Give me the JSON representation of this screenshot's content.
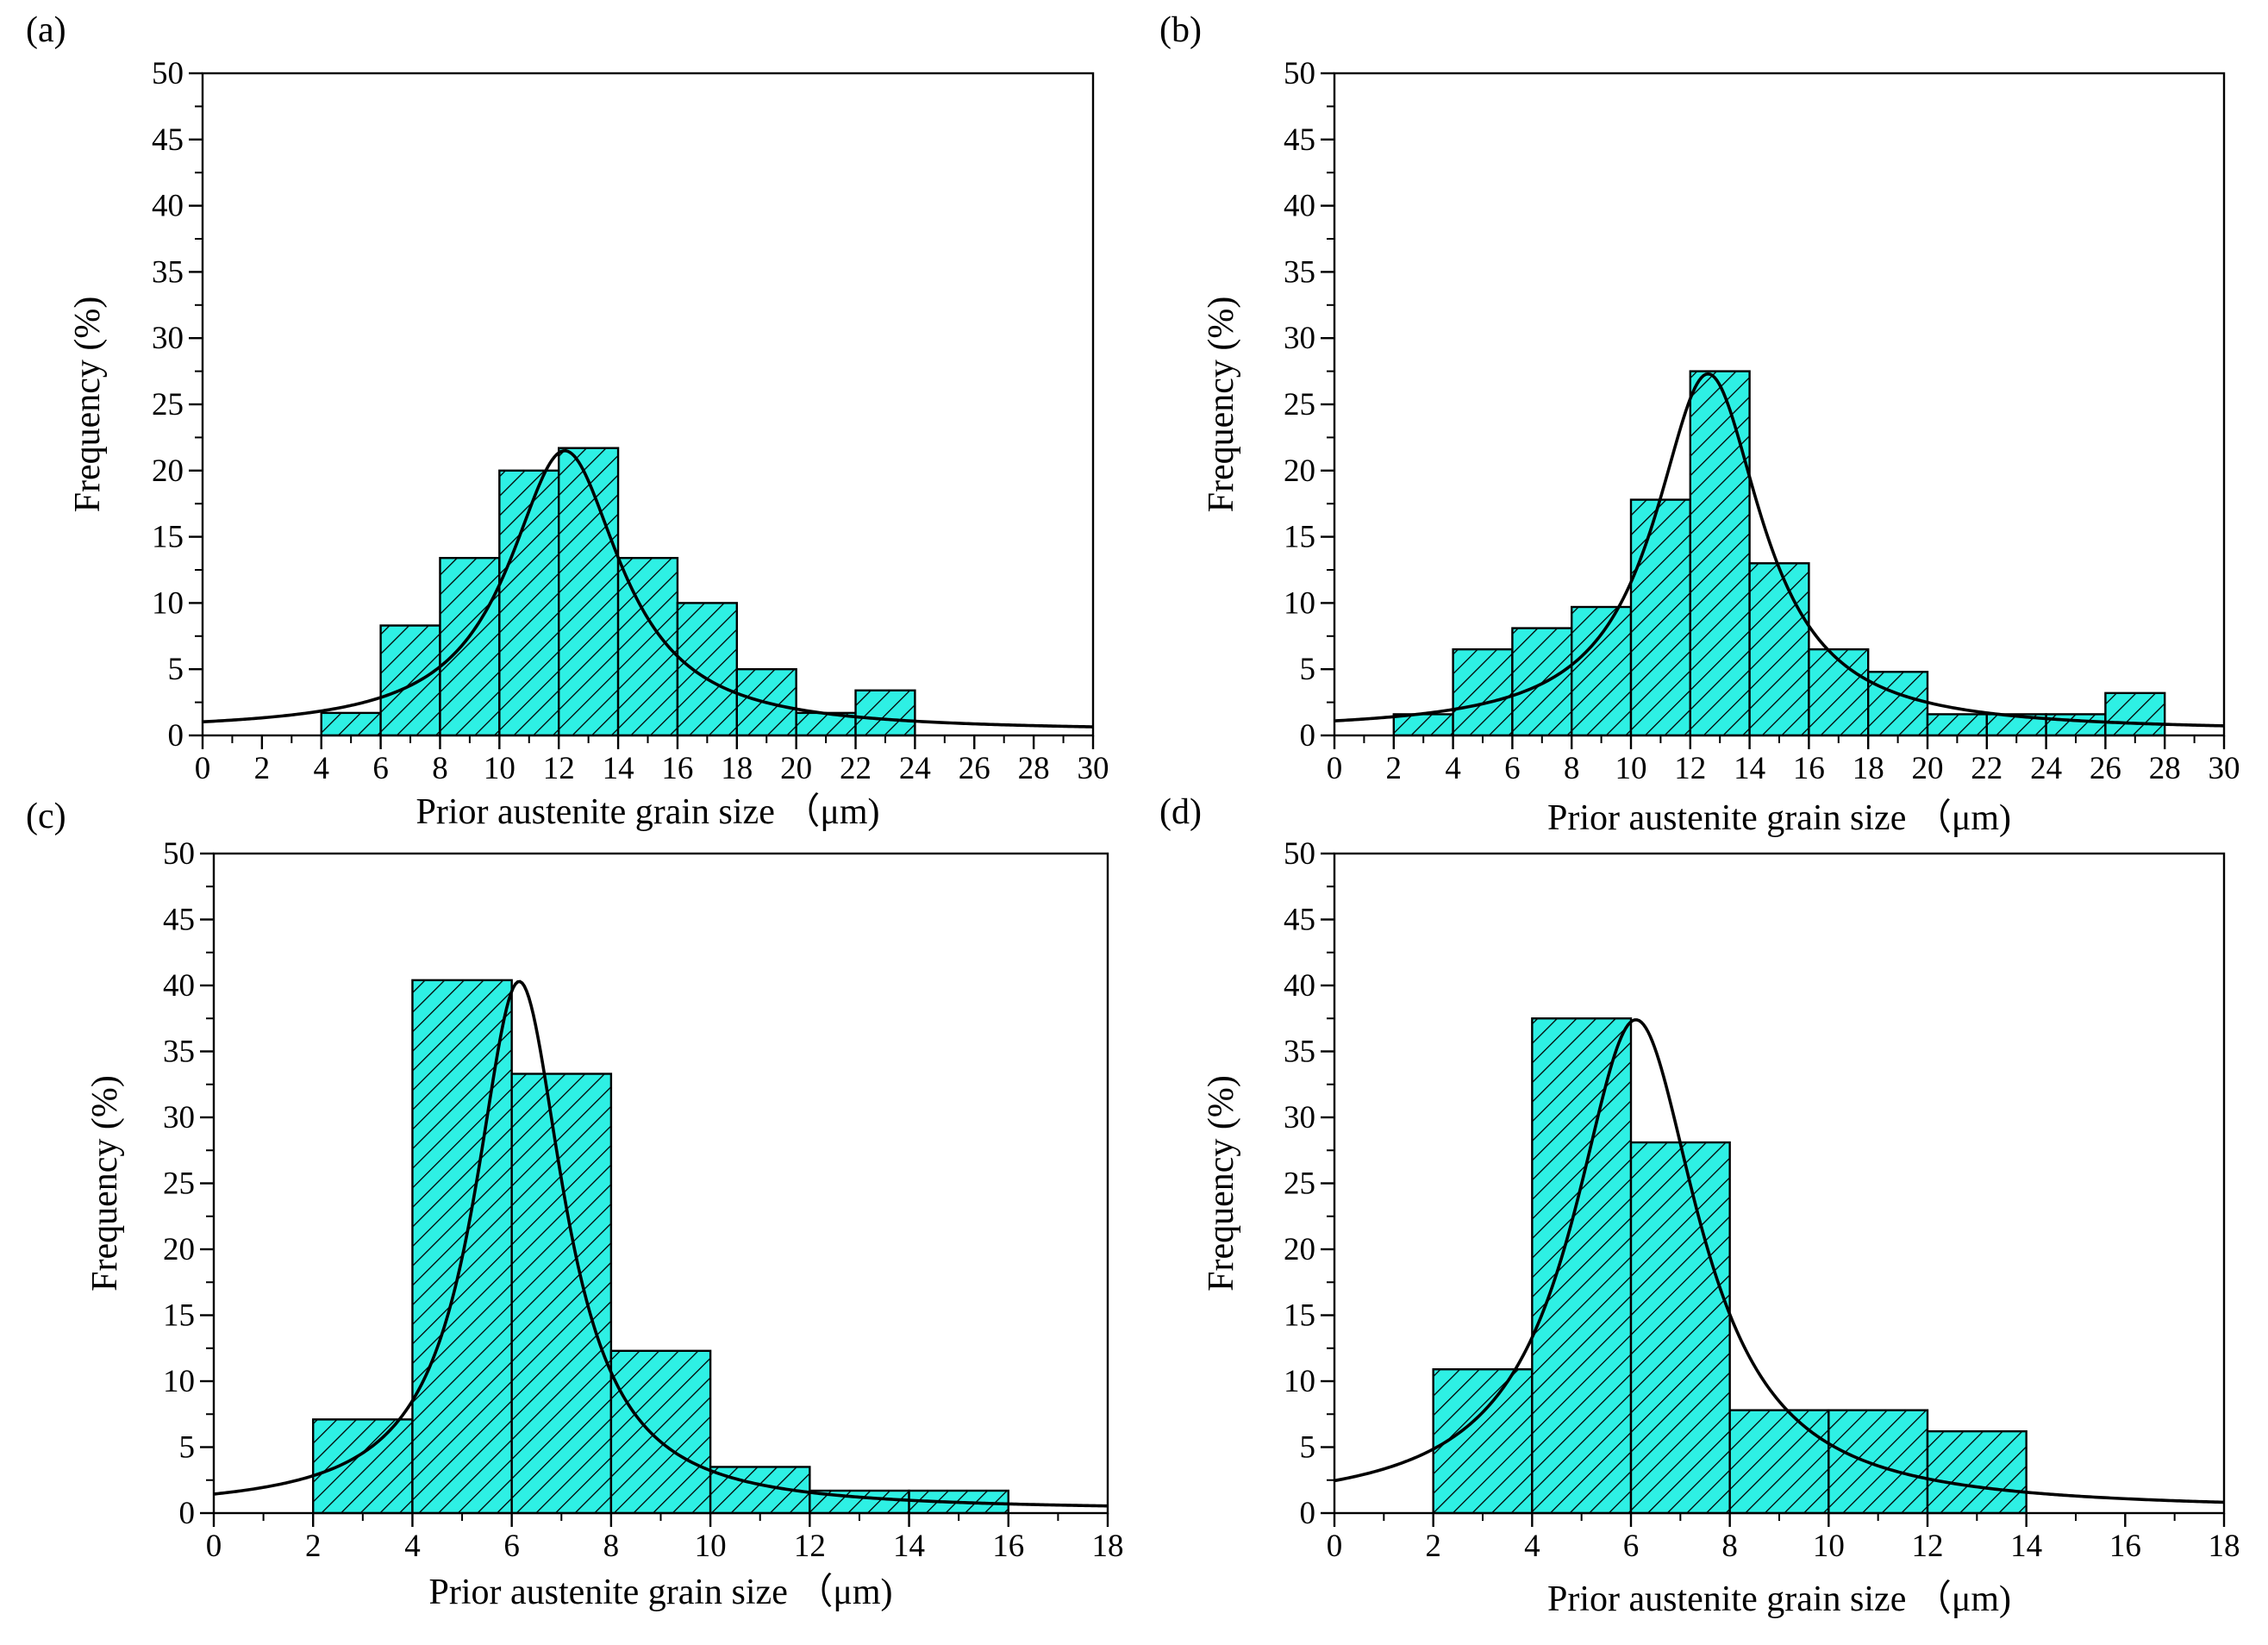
{
  "chart_data": [
    {
      "type": "bar",
      "panel_label": "(a)",
      "xlabel": "Prior austenite grain size （μm)",
      "ylabel": "Frequency (%)",
      "xlim": [
        0,
        30
      ],
      "ylim": [
        0,
        50
      ],
      "xticks": [
        0,
        2,
        4,
        6,
        8,
        10,
        12,
        14,
        16,
        18,
        20,
        22,
        24,
        26,
        28,
        30
      ],
      "yticks": [
        0,
        5,
        10,
        15,
        20,
        25,
        30,
        35,
        40,
        45,
        50
      ],
      "bin_width": 2,
      "bin_starts": [
        4,
        6,
        8,
        10,
        12,
        14,
        16,
        18,
        20,
        22
      ],
      "values": [
        1.7,
        8.3,
        13.4,
        20.0,
        21.7,
        13.4,
        10.0,
        5.0,
        1.7,
        3.4
      ],
      "fit_curve": {
        "type": "lorentzian",
        "center": 12.2,
        "peak": 21.5,
        "hwhm": 2.3,
        "baseline": 0.3
      },
      "bar_fill": "#2ef0e4",
      "hatch": "diagonal",
      "grid": false
    },
    {
      "type": "bar",
      "panel_label": "(b)",
      "xlabel": "Prior austenite grain size （μm)",
      "ylabel": "Frequency (%)",
      "xlim": [
        0,
        30
      ],
      "ylim": [
        0,
        50
      ],
      "xticks": [
        0,
        2,
        4,
        6,
        8,
        10,
        12,
        14,
        16,
        18,
        20,
        22,
        24,
        26,
        28,
        30
      ],
      "yticks": [
        0,
        5,
        10,
        15,
        20,
        25,
        30,
        35,
        40,
        45,
        50
      ],
      "bin_width": 2,
      "bin_starts": [
        2,
        4,
        6,
        8,
        10,
        12,
        14,
        16,
        18,
        20,
        22,
        24,
        26
      ],
      "values": [
        1.6,
        6.5,
        8.1,
        9.7,
        17.8,
        27.5,
        13.0,
        6.5,
        4.8,
        1.6,
        1.6,
        1.6,
        3.2
      ],
      "fit_curve": {
        "type": "lorentzian",
        "center": 12.6,
        "peak": 27.3,
        "hwhm": 2.2,
        "baseline": 0.3
      },
      "bar_fill": "#2ef0e4",
      "hatch": "diagonal",
      "grid": false
    },
    {
      "type": "bar",
      "panel_label": "(c)",
      "xlabel": "Prior austenite grain size （μm)",
      "ylabel": "Frequency (%)",
      "xlim": [
        0,
        18
      ],
      "ylim": [
        0,
        50
      ],
      "xticks": [
        0,
        2,
        4,
        6,
        8,
        10,
        12,
        14,
        16,
        18
      ],
      "yticks": [
        0,
        5,
        10,
        15,
        20,
        25,
        30,
        35,
        40,
        45,
        50
      ],
      "bin_width": 2,
      "bin_starts": [
        2,
        4,
        6,
        8,
        10,
        12,
        14
      ],
      "values": [
        7.1,
        40.4,
        33.3,
        12.3,
        3.5,
        1.7,
        1.7
      ],
      "fit_curve": {
        "type": "lorentzian",
        "center": 6.15,
        "peak": 40.3,
        "hwhm": 1.1,
        "baseline": 0.2
      },
      "bar_fill": "#2ef0e4",
      "hatch": "diagonal",
      "grid": false
    },
    {
      "type": "bar",
      "panel_label": "(d)",
      "xlabel": "Prior austenite grain size （μm)",
      "ylabel": "Frequency (%)",
      "xlim": [
        0,
        18
      ],
      "ylim": [
        0,
        50
      ],
      "xticks": [
        0,
        2,
        4,
        6,
        8,
        10,
        12,
        14,
        16,
        18
      ],
      "yticks": [
        0,
        5,
        10,
        15,
        20,
        25,
        30,
        35,
        40,
        45,
        50
      ],
      "bin_width": 2,
      "bin_starts": [
        2,
        4,
        6,
        8,
        10,
        12
      ],
      "values": [
        10.9,
        37.5,
        28.1,
        7.8,
        7.8,
        6.2
      ],
      "fit_curve": {
        "type": "lorentzian",
        "center": 6.1,
        "peak": 37.4,
        "hwhm": 1.55,
        "baseline": 0.2
      },
      "bar_fill": "#2ef0e4",
      "hatch": "diagonal",
      "grid": false
    }
  ]
}
